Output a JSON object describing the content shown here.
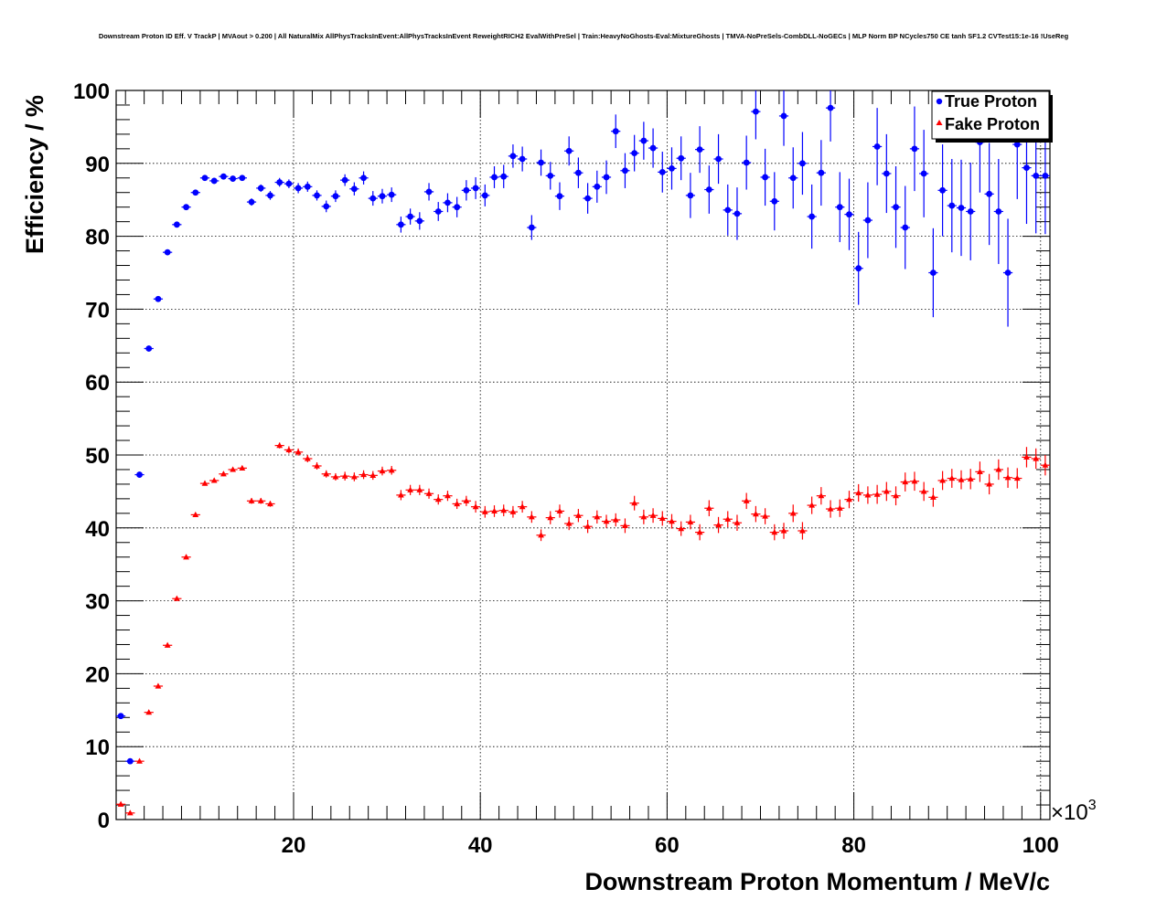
{
  "chart_data": {
    "type": "scatter",
    "title": "Downstream Proton ID Eff. V TrackP | MVAout > 0.200 | All NaturalMix AllPhysTracksInEvent:AllPhysTracksInEvent ReweightRICH2 EvalWithPreSel | Train:HeavyNoGhosts-Eval:MixtureGhosts | TMVA-NoPreSels-CombDLL-NoGECs | MLP Norm BP NCycles750 CE tanh SF1.2 CVTest15:1e-16 !UseReg",
    "xlabel": "Downstream Proton Momentum / MeV/c",
    "ylabel": "Efficiency / %",
    "x_exponent_label": "×10",
    "x_exponent": "3",
    "xlim": [
      1,
      101
    ],
    "ylim": [
      0,
      100
    ],
    "x_ticks": [
      20,
      40,
      60,
      80,
      100
    ],
    "y_ticks": [
      0,
      10,
      20,
      30,
      40,
      50,
      60,
      70,
      80,
      90,
      100
    ],
    "grid": true,
    "legend_position": "top-right",
    "colors": {
      "true": "#0000ff",
      "fake": "#ff0000"
    },
    "x": [
      1.5,
      2.5,
      3.5,
      4.5,
      5.5,
      6.5,
      7.5,
      8.5,
      9.5,
      10.5,
      11.5,
      12.5,
      13.5,
      14.5,
      15.5,
      16.5,
      17.5,
      18.5,
      19.5,
      20.5,
      21.5,
      22.5,
      23.5,
      24.5,
      25.5,
      26.5,
      27.5,
      28.5,
      29.5,
      30.5,
      31.5,
      32.5,
      33.5,
      34.5,
      35.5,
      36.5,
      37.5,
      38.5,
      39.5,
      40.5,
      41.5,
      42.5,
      43.5,
      44.5,
      45.5,
      46.5,
      47.5,
      48.5,
      49.5,
      50.5,
      51.5,
      52.5,
      53.5,
      54.5,
      55.5,
      56.5,
      57.5,
      58.5,
      59.5,
      60.5,
      61.5,
      62.5,
      63.5,
      64.5,
      65.5,
      66.5,
      67.5,
      68.5,
      69.5,
      70.5,
      71.5,
      72.5,
      73.5,
      74.5,
      75.5,
      76.5,
      77.5,
      78.5,
      79.5,
      80.5,
      81.5,
      82.5,
      83.5,
      84.5,
      85.5,
      86.5,
      87.5,
      88.5,
      89.5,
      90.5,
      91.5,
      92.5,
      93.5,
      94.5,
      95.5,
      96.5,
      97.5,
      98.5,
      99.5,
      100.5
    ],
    "series": [
      {
        "name": "True Proton",
        "marker": "circle",
        "values": [
          14.2,
          8.0,
          47.3,
          64.6,
          71.4,
          77.8,
          81.6,
          84.0,
          86.0,
          88.0,
          87.6,
          88.2,
          87.9,
          88.0,
          84.7,
          86.6,
          85.6,
          87.4,
          87.2,
          86.6,
          86.8,
          85.6,
          84.1,
          85.5,
          87.7,
          86.5,
          88.0,
          85.2,
          85.5,
          85.7,
          81.6,
          82.7,
          82.1,
          86.1,
          83.4,
          84.6,
          84.0,
          86.3,
          86.6,
          85.6,
          88.1,
          88.2,
          91.0,
          90.6,
          81.2,
          90.1,
          88.3,
          85.5,
          91.7,
          88.7,
          85.2,
          86.8,
          88.1,
          94.4,
          89.0,
          91.4,
          93.1,
          92.1,
          88.8,
          89.3,
          90.7,
          85.6,
          91.9,
          86.4,
          90.6,
          83.6,
          83.1,
          90.1,
          97.1,
          88.1,
          84.8,
          96.5,
          88.0,
          90.0,
          82.7,
          88.7,
          97.6,
          84.0,
          83.0,
          75.6,
          82.2,
          92.3,
          88.6,
          84.0,
          81.2,
          92.0,
          88.6,
          75.0,
          86.3,
          84.2,
          83.9,
          83.4,
          92.9,
          85.8,
          83.4,
          75.0,
          92.6,
          89.4,
          88.3,
          88.3
        ],
        "errors": [
          0.4,
          0.3,
          0.4,
          0.4,
          0.4,
          0.4,
          0.4,
          0.4,
          0.4,
          0.4,
          0.4,
          0.4,
          0.4,
          0.4,
          0.5,
          0.5,
          0.6,
          0.6,
          0.6,
          0.7,
          0.7,
          0.7,
          0.8,
          0.8,
          0.8,
          0.9,
          0.9,
          1.0,
          1.0,
          1.0,
          1.1,
          1.1,
          1.2,
          1.2,
          1.3,
          1.3,
          1.4,
          1.4,
          1.5,
          1.5,
          1.5,
          1.6,
          1.6,
          1.7,
          1.7,
          1.8,
          1.9,
          1.9,
          2.0,
          2.1,
          2.1,
          2.2,
          2.3,
          2.3,
          2.4,
          2.5,
          2.6,
          2.7,
          2.8,
          2.9,
          3.0,
          3.1,
          3.2,
          3.3,
          3.4,
          3.5,
          3.6,
          3.7,
          3.8,
          3.9,
          4.0,
          4.1,
          4.2,
          4.3,
          4.4,
          4.5,
          4.6,
          4.8,
          4.9,
          5.0,
          5.2,
          5.3,
          5.4,
          5.6,
          5.7,
          5.8,
          6.0,
          6.1,
          6.3,
          6.4,
          6.6,
          6.7,
          6.9,
          7.0,
          7.2,
          7.4,
          7.5,
          7.7,
          7.9,
          8.0
        ]
      },
      {
        "name": "Fake Proton",
        "marker": "triangle",
        "values": [
          2.1,
          0.9,
          8.0,
          14.7,
          18.3,
          23.9,
          30.3,
          36.0,
          41.8,
          46.1,
          46.5,
          47.4,
          48.0,
          48.2,
          43.7,
          43.7,
          43.3,
          51.3,
          50.7,
          50.4,
          49.5,
          48.5,
          47.4,
          47.0,
          47.1,
          47.0,
          47.3,
          47.2,
          47.8,
          47.9,
          44.5,
          45.2,
          45.2,
          44.7,
          43.9,
          44.4,
          43.3,
          43.7,
          42.9,
          42.2,
          42.3,
          42.4,
          42.2,
          42.9,
          41.5,
          39.0,
          41.4,
          42.3,
          40.6,
          41.7,
          40.2,
          41.5,
          40.9,
          41.1,
          40.3,
          43.4,
          41.5,
          41.7,
          41.3,
          40.9,
          39.9,
          40.8,
          39.4,
          42.7,
          40.4,
          41.2,
          40.7,
          43.7,
          41.9,
          41.6,
          39.4,
          39.6,
          42.0,
          39.6,
          43.1,
          44.4,
          42.6,
          42.7,
          43.9,
          44.8,
          44.5,
          44.6,
          45.0,
          44.4,
          46.3,
          46.4,
          45.0,
          44.2,
          46.5,
          46.8,
          46.6,
          46.7,
          47.7,
          46.0,
          48.0,
          46.9,
          46.8,
          49.7,
          49.5,
          48.6
        ],
        "errors": [
          0.3,
          0.2,
          0.3,
          0.3,
          0.3,
          0.3,
          0.3,
          0.3,
          0.3,
          0.3,
          0.3,
          0.3,
          0.3,
          0.3,
          0.4,
          0.4,
          0.4,
          0.4,
          0.5,
          0.5,
          0.5,
          0.5,
          0.5,
          0.5,
          0.6,
          0.6,
          0.6,
          0.6,
          0.6,
          0.6,
          0.7,
          0.7,
          0.7,
          0.7,
          0.7,
          0.7,
          0.7,
          0.7,
          0.8,
          0.8,
          0.8,
          0.8,
          0.8,
          0.8,
          0.8,
          0.8,
          0.9,
          0.9,
          0.9,
          0.9,
          0.9,
          0.9,
          0.9,
          0.9,
          1.0,
          1.0,
          1.0,
          1.0,
          1.0,
          1.0,
          1.0,
          1.0,
          1.1,
          1.1,
          1.1,
          1.1,
          1.1,
          1.1,
          1.1,
          1.1,
          1.1,
          1.1,
          1.2,
          1.2,
          1.2,
          1.2,
          1.2,
          1.2,
          1.2,
          1.2,
          1.2,
          1.3,
          1.3,
          1.3,
          1.3,
          1.3,
          1.3,
          1.3,
          1.3,
          1.3,
          1.3,
          1.4,
          1.4,
          1.4,
          1.4,
          1.4,
          1.4,
          1.4,
          1.4,
          1.4
        ]
      }
    ]
  }
}
